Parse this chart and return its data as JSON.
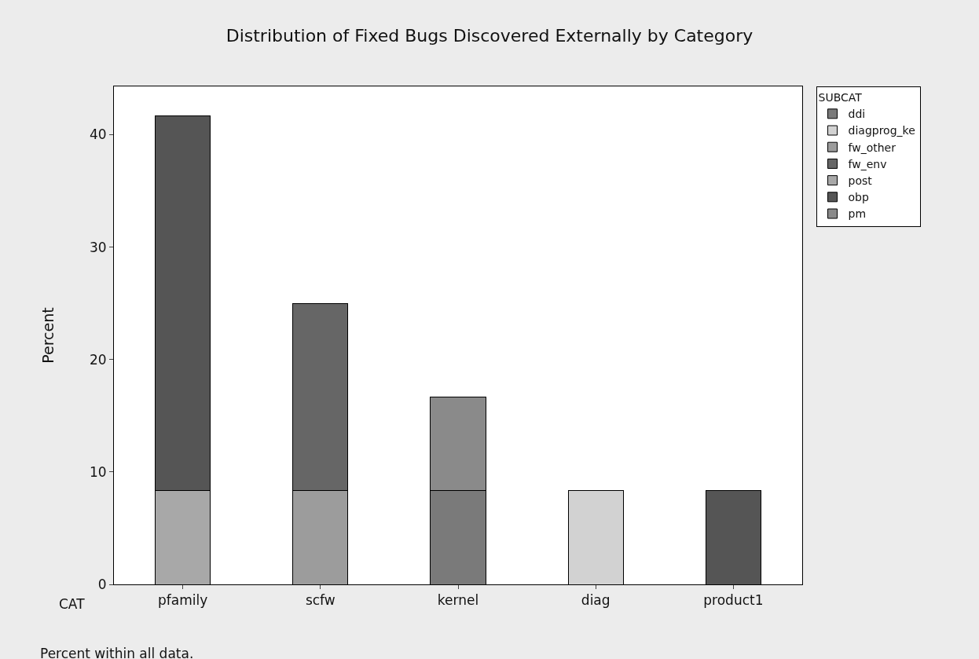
{
  "chart_data": {
    "type": "bar",
    "stacked": true,
    "title": "Distribution of Fixed Bugs Discovered Externally by Category",
    "xlabel": "CAT",
    "ylabel": "Percent",
    "legend_title": "SUBCAT",
    "legend": "top right",
    "categories": [
      "pfamily",
      "scfw",
      "kernel",
      "diag",
      "product1"
    ],
    "series": [
      {
        "name": "ddi",
        "color": "#7a7a7a",
        "values": [
          null,
          null,
          8.33,
          null,
          null
        ]
      },
      {
        "name": "diagprog_ke",
        "color": "#d2d2d2",
        "values": [
          null,
          null,
          null,
          8.33,
          null
        ]
      },
      {
        "name": "fw_other",
        "color": "#9c9c9c",
        "values": [
          null,
          8.33,
          null,
          null,
          null
        ]
      },
      {
        "name": "fw_env",
        "color": "#666666",
        "values": [
          null,
          16.67,
          null,
          null,
          null
        ]
      },
      {
        "name": "post",
        "color": "#a8a8a8",
        "values": [
          8.33,
          null,
          null,
          null,
          null
        ]
      },
      {
        "name": "obp",
        "color": "#555555",
        "values": [
          33.33,
          null,
          null,
          null,
          8.33
        ]
      },
      {
        "name": "pm",
        "color": "#8a8a8a",
        "values": [
          null,
          null,
          8.33,
          null,
          null
        ]
      }
    ],
    "ylim": [
      0,
      44.3
    ],
    "yticks": [
      0,
      10,
      20,
      30,
      40
    ],
    "grid": false,
    "annotations": [
      "Percent within all data."
    ]
  }
}
